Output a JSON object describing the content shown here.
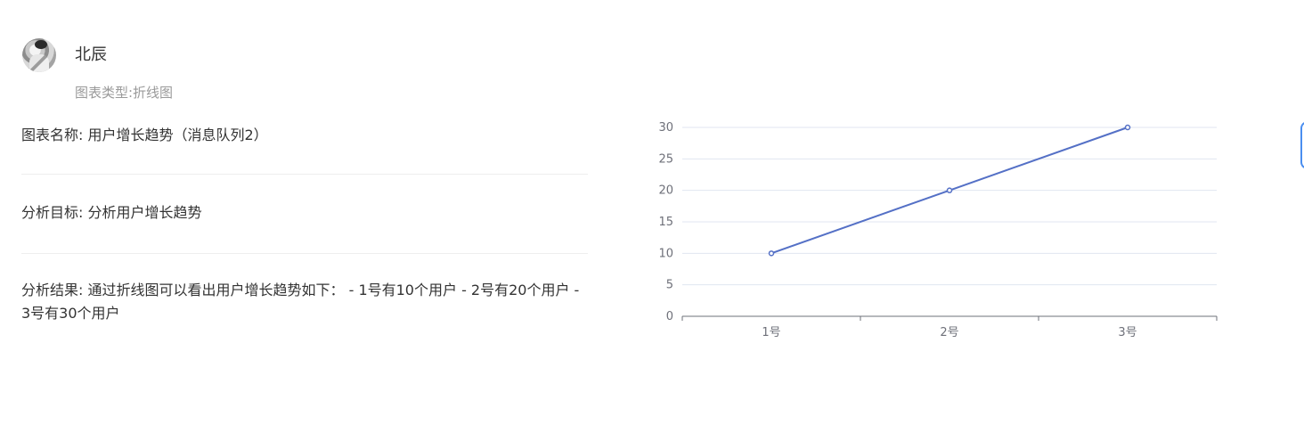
{
  "user": {
    "name": "北辰",
    "chart_type": "图表类型:折线图"
  },
  "info": {
    "chart_name_label": "图表名称",
    "chart_name_value": "用户增长趋势（消息队列2）",
    "goal_label": "分析目标",
    "goal_value": "分析用户增长趋势",
    "result_label": "分析结果",
    "result_value": "通过折线图可以看出用户增长趋势如下：  - 1号有10个用户 - 2号有20个用户 - 3号有30个用户"
  },
  "colors": {
    "series": "#5470c6",
    "grid": "#e0e6f1",
    "axis": "#6e7079"
  },
  "chart_data": {
    "type": "line",
    "categories": [
      "1号",
      "2号",
      "3号"
    ],
    "series": [
      {
        "values": [
          10,
          20,
          30
        ]
      }
    ],
    "ylim": [
      0,
      30
    ],
    "yticks": [
      0,
      5,
      10,
      15,
      20,
      25,
      30
    ],
    "grid": true,
    "title": "",
    "xlabel": "",
    "ylabel": ""
  }
}
